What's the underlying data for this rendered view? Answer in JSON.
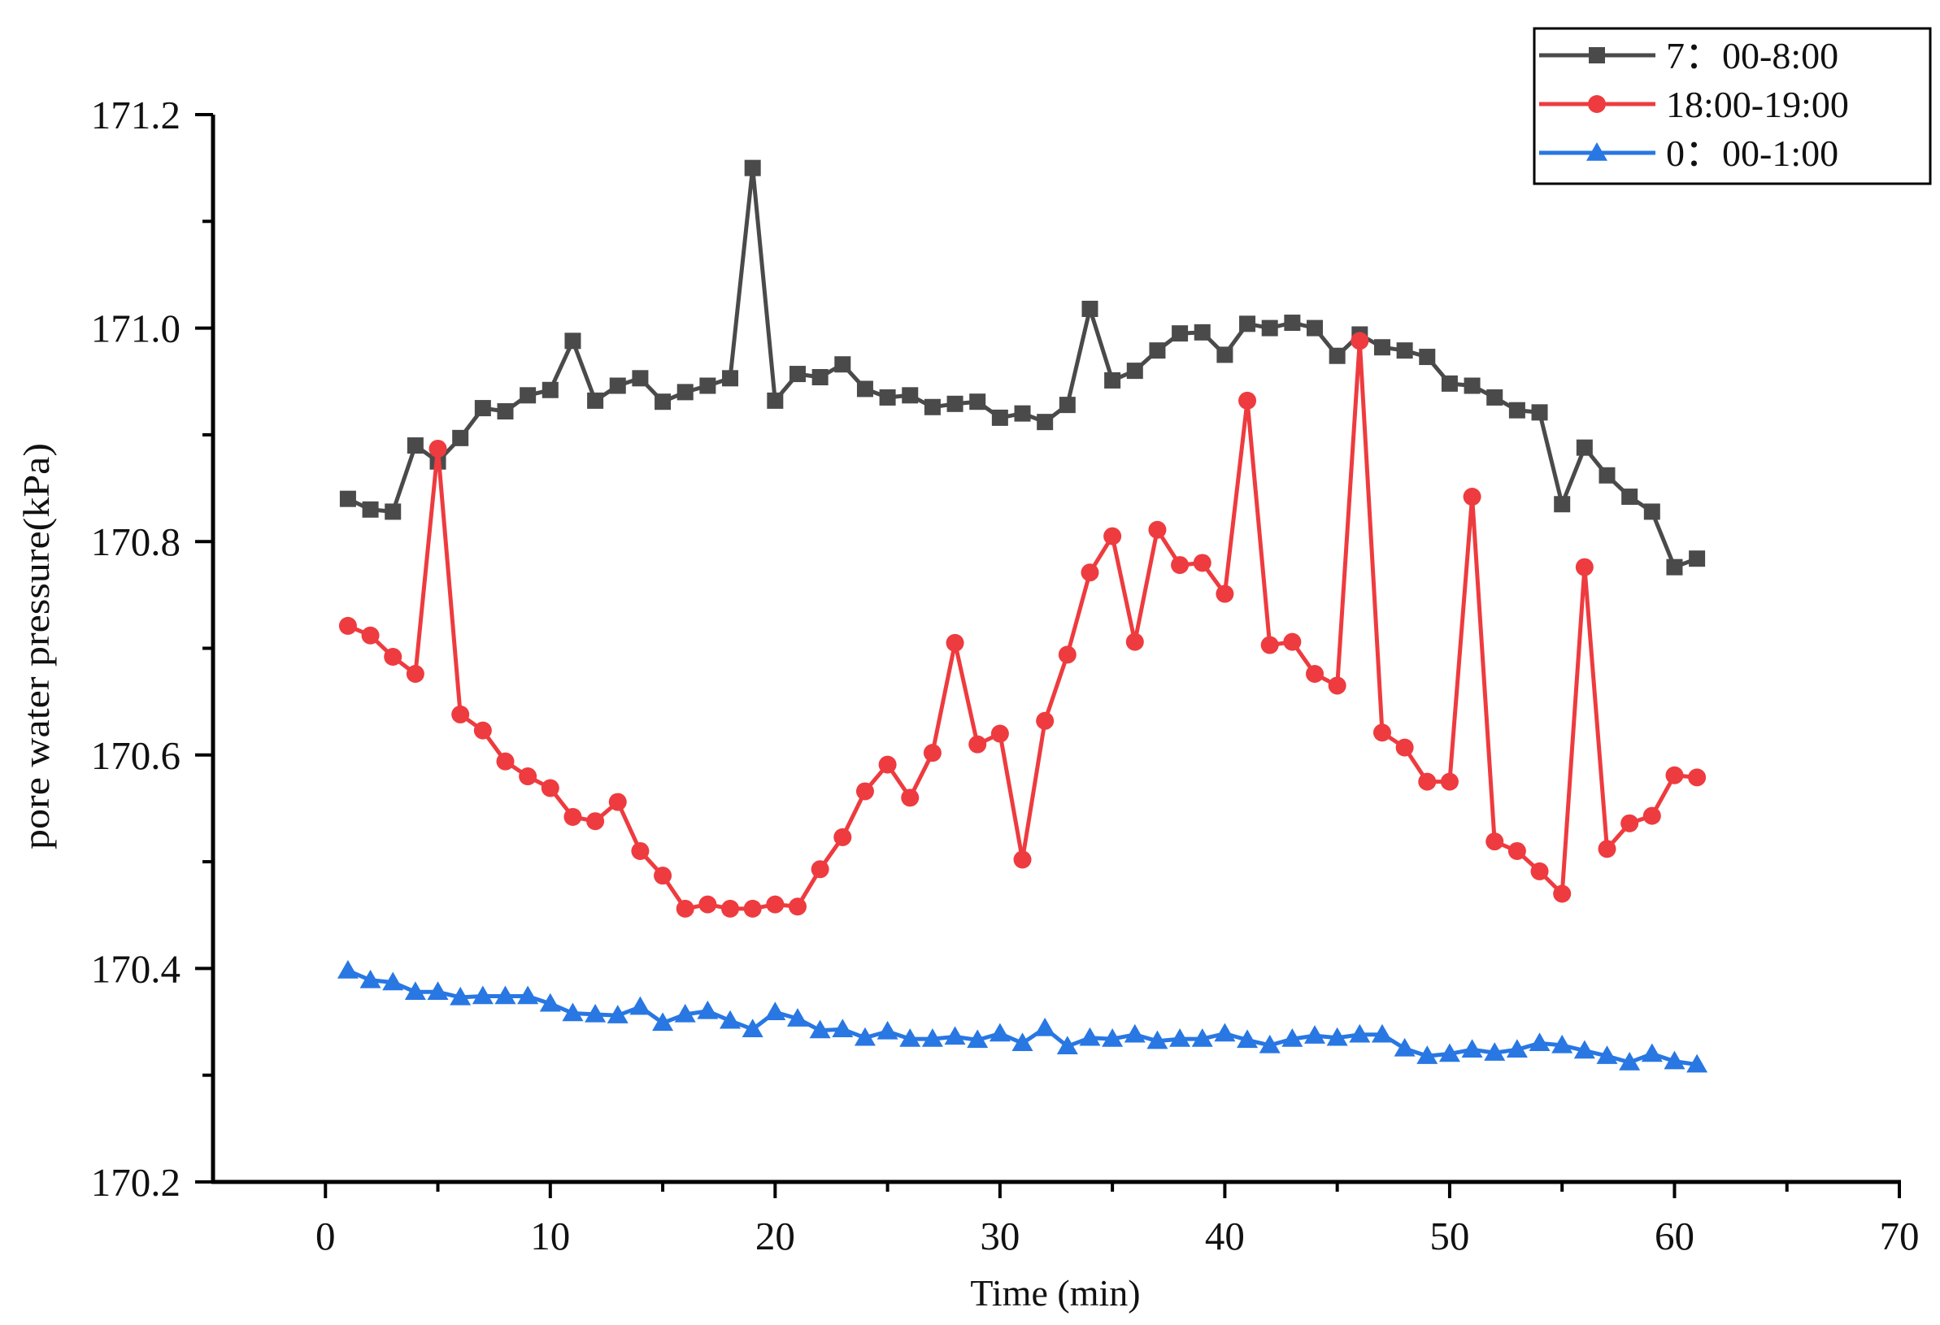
{
  "chart_data": {
    "type": "line",
    "title": "",
    "xlabel": "Time (min)",
    "ylabel": "pore water pressure(kPa)",
    "xlim": [
      -5,
      70
    ],
    "ylim": [
      170.2,
      171.2
    ],
    "xticks": [
      0,
      10,
      20,
      30,
      40,
      50,
      60,
      70
    ],
    "yticks": [
      170.2,
      170.4,
      170.6,
      170.8,
      171.0,
      171.2
    ],
    "xtick_labels": [
      "0",
      "10",
      "20",
      "30",
      "40",
      "50",
      "60",
      "70"
    ],
    "ytick_labels": [
      "170.2",
      "170.4",
      "170.6",
      "170.8",
      "171.0",
      "171.2"
    ],
    "grid": false,
    "legend_position": "top-right",
    "x": [
      1,
      2,
      3,
      4,
      5,
      6,
      7,
      8,
      9,
      10,
      11,
      12,
      13,
      14,
      15,
      16,
      17,
      18,
      19,
      20,
      21,
      22,
      23,
      24,
      25,
      26,
      27,
      28,
      29,
      30,
      31,
      32,
      33,
      34,
      35,
      36,
      37,
      38,
      39,
      40,
      41,
      42,
      43,
      44,
      45,
      46,
      47,
      48,
      49,
      50,
      51,
      52,
      53,
      54,
      55,
      56,
      57,
      58,
      59,
      60,
      61
    ],
    "series": [
      {
        "name": "7：00-8:00",
        "color": "#4a4a4a",
        "marker": "square",
        "values": [
          170.84,
          170.83,
          170.828,
          170.89,
          170.875,
          170.897,
          170.925,
          170.922,
          170.937,
          170.942,
          170.988,
          170.932,
          170.946,
          170.953,
          170.931,
          170.94,
          170.946,
          170.953,
          171.15,
          170.932,
          170.957,
          170.954,
          170.966,
          170.943,
          170.935,
          170.937,
          170.926,
          170.929,
          170.931,
          170.916,
          170.92,
          170.912,
          170.928,
          171.018,
          170.951,
          170.96,
          170.979,
          170.995,
          170.996,
          170.975,
          171.004,
          171.0,
          171.005,
          171.0,
          170.974,
          170.994,
          170.982,
          170.979,
          170.973,
          170.948,
          170.946,
          170.935,
          170.923,
          170.921,
          170.835,
          170.888,
          170.862,
          170.842,
          170.828,
          170.776,
          170.784
        ]
      },
      {
        "name": "18:00-19:00",
        "color": "#ee3b3f",
        "marker": "circle",
        "values": [
          170.721,
          170.712,
          170.692,
          170.676,
          170.887,
          170.638,
          170.623,
          170.594,
          170.58,
          170.569,
          170.542,
          170.538,
          170.556,
          170.51,
          170.487,
          170.456,
          170.46,
          170.456,
          170.456,
          170.46,
          170.458,
          170.493,
          170.523,
          170.566,
          170.591,
          170.56,
          170.602,
          170.705,
          170.61,
          170.62,
          170.502,
          170.632,
          170.694,
          170.771,
          170.805,
          170.706,
          170.811,
          170.778,
          170.78,
          170.751,
          170.932,
          170.703,
          170.706,
          170.676,
          170.665,
          170.988,
          170.621,
          170.607,
          170.575,
          170.575,
          170.842,
          170.519,
          170.51,
          170.491,
          170.47,
          170.776,
          170.512,
          170.536,
          170.543,
          170.581,
          170.579
        ]
      },
      {
        "name": "0：00-1:00",
        "color": "#2877e3",
        "marker": "triangle",
        "values": [
          170.398,
          170.389,
          170.387,
          170.378,
          170.378,
          170.373,
          170.374,
          170.374,
          170.374,
          170.367,
          170.358,
          170.357,
          170.356,
          170.364,
          170.349,
          170.357,
          170.36,
          170.351,
          170.343,
          170.359,
          170.353,
          170.342,
          170.343,
          170.335,
          170.341,
          170.334,
          170.334,
          170.336,
          170.333,
          170.339,
          170.33,
          170.344,
          170.327,
          170.335,
          170.334,
          170.338,
          170.332,
          170.334,
          170.334,
          170.339,
          170.333,
          170.328,
          170.334,
          170.337,
          170.335,
          170.338,
          170.338,
          170.325,
          170.318,
          170.32,
          170.324,
          170.321,
          170.324,
          170.33,
          170.328,
          170.323,
          170.318,
          170.312,
          170.32,
          170.313,
          170.31
        ]
      }
    ]
  }
}
